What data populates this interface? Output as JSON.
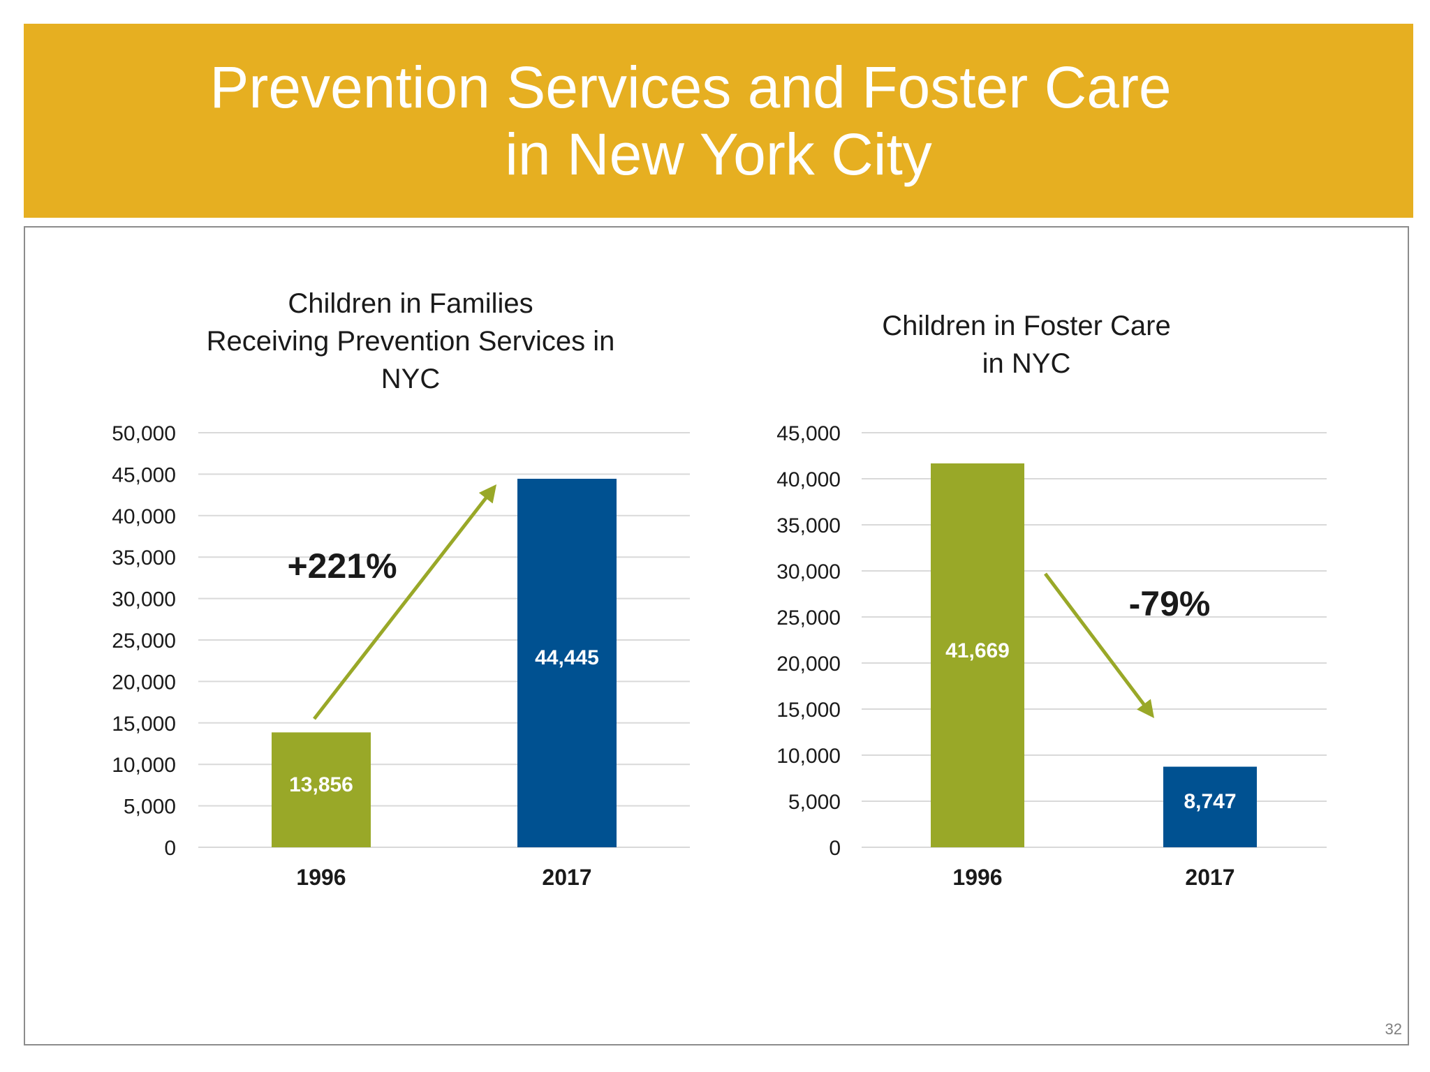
{
  "title": {
    "line1": "Prevention Services and Foster Care",
    "line2": "in New York City"
  },
  "page_number": "32",
  "colors": {
    "banner": "#E6AF21",
    "green": "#99A828",
    "blue": "#005191",
    "grid": "#d9d9d9"
  },
  "chart_data": [
    {
      "type": "bar",
      "title_lines": [
        "Children in Families",
        "Receiving Prevention Services in",
        "NYC"
      ],
      "categories": [
        "1996",
        "2017"
      ],
      "values": [
        13856,
        44445
      ],
      "value_labels": [
        "13,856",
        "44,445"
      ],
      "ylim": [
        0,
        50000
      ],
      "yticks": [
        0,
        5000,
        10000,
        15000,
        20000,
        25000,
        30000,
        35000,
        40000,
        45000,
        50000
      ],
      "ytick_labels": [
        "0",
        "5,000",
        "10,000",
        "15,000",
        "20,000",
        "25,000",
        "30,000",
        "35,000",
        "40,000",
        "45,000",
        "50,000"
      ],
      "annotation": "+221%",
      "trend": "up",
      "grid": true
    },
    {
      "type": "bar",
      "title_lines": [
        "Children in Foster Care",
        "in NYC"
      ],
      "categories": [
        "1996",
        "2017"
      ],
      "values": [
        41669,
        8747
      ],
      "value_labels": [
        "41,669",
        "8,747"
      ],
      "ylim": [
        0,
        45000
      ],
      "yticks": [
        0,
        5000,
        10000,
        15000,
        20000,
        25000,
        30000,
        35000,
        40000,
        45000
      ],
      "ytick_labels": [
        "0",
        "5,000",
        "10,000",
        "15,000",
        "20,000",
        "25,000",
        "30,000",
        "35,000",
        "40,000",
        "45,000"
      ],
      "annotation": "-79%",
      "trend": "down",
      "grid": true
    }
  ]
}
